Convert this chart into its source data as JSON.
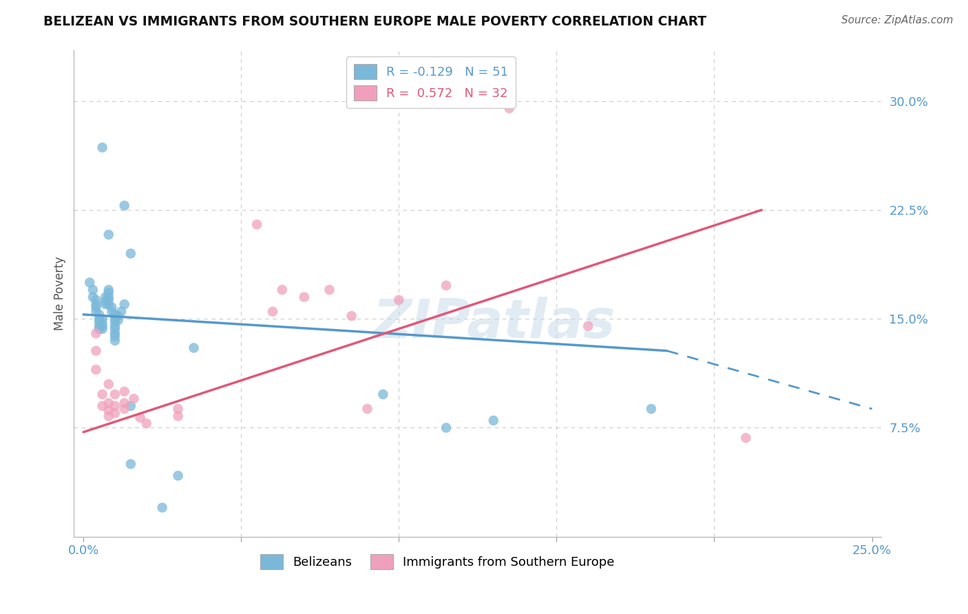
{
  "title": "BELIZEAN VS IMMIGRANTS FROM SOUTHERN EUROPE MALE POVERTY CORRELATION CHART",
  "source": "Source: ZipAtlas.com",
  "ylabel": "Male Poverty",
  "xlim": [
    -0.003,
    0.253
  ],
  "ylim": [
    0.0,
    0.335
  ],
  "xticks": [
    0.0,
    0.05,
    0.1,
    0.15,
    0.2,
    0.25
  ],
  "xticklabels": [
    "0.0%",
    "",
    "",
    "",
    "",
    "25.0%"
  ],
  "yticks": [
    0.075,
    0.15,
    0.225,
    0.3
  ],
  "yticklabels": [
    "7.5%",
    "15.0%",
    "22.5%",
    "30.0%"
  ],
  "watermark": "ZIPatlas",
  "legend_blue": "R = -0.129   N = 51",
  "legend_pink": "R =  0.572   N = 32",
  "legend2_blue": "Belizeans",
  "legend2_pink": "Immigrants from Southern Europe",
  "blue_color": "#7ab8d9",
  "pink_color": "#f0a0bc",
  "blue_line_color": "#5599cc",
  "pink_line_color": "#e05878",
  "blue_scatter": [
    [
      0.006,
      0.268
    ],
    [
      0.013,
      0.228
    ],
    [
      0.008,
      0.208
    ],
    [
      0.015,
      0.195
    ],
    [
      0.002,
      0.175
    ],
    [
      0.003,
      0.17
    ],
    [
      0.003,
      0.165
    ],
    [
      0.004,
      0.163
    ],
    [
      0.004,
      0.16
    ],
    [
      0.004,
      0.158
    ],
    [
      0.004,
      0.155
    ],
    [
      0.005,
      0.153
    ],
    [
      0.005,
      0.15
    ],
    [
      0.005,
      0.148
    ],
    [
      0.005,
      0.145
    ],
    [
      0.005,
      0.143
    ],
    [
      0.006,
      0.15
    ],
    [
      0.006,
      0.147
    ],
    [
      0.006,
      0.145
    ],
    [
      0.006,
      0.143
    ],
    [
      0.007,
      0.165
    ],
    [
      0.007,
      0.162
    ],
    [
      0.007,
      0.16
    ],
    [
      0.008,
      0.17
    ],
    [
      0.008,
      0.168
    ],
    [
      0.008,
      0.165
    ],
    [
      0.008,
      0.163
    ],
    [
      0.008,
      0.16
    ],
    [
      0.009,
      0.158
    ],
    [
      0.009,
      0.155
    ],
    [
      0.01,
      0.153
    ],
    [
      0.01,
      0.15
    ],
    [
      0.01,
      0.148
    ],
    [
      0.01,
      0.145
    ],
    [
      0.01,
      0.143
    ],
    [
      0.01,
      0.14
    ],
    [
      0.01,
      0.138
    ],
    [
      0.01,
      0.135
    ],
    [
      0.011,
      0.152
    ],
    [
      0.011,
      0.149
    ],
    [
      0.012,
      0.155
    ],
    [
      0.013,
      0.16
    ],
    [
      0.015,
      0.09
    ],
    [
      0.035,
      0.13
    ],
    [
      0.095,
      0.098
    ],
    [
      0.115,
      0.075
    ],
    [
      0.13,
      0.08
    ],
    [
      0.18,
      0.088
    ],
    [
      0.015,
      0.05
    ],
    [
      0.03,
      0.042
    ],
    [
      0.025,
      0.02
    ]
  ],
  "pink_scatter": [
    [
      0.004,
      0.14
    ],
    [
      0.004,
      0.128
    ],
    [
      0.004,
      0.115
    ],
    [
      0.006,
      0.098
    ],
    [
      0.006,
      0.09
    ],
    [
      0.008,
      0.105
    ],
    [
      0.008,
      0.092
    ],
    [
      0.008,
      0.087
    ],
    [
      0.008,
      0.083
    ],
    [
      0.01,
      0.098
    ],
    [
      0.01,
      0.09
    ],
    [
      0.01,
      0.085
    ],
    [
      0.013,
      0.1
    ],
    [
      0.013,
      0.092
    ],
    [
      0.013,
      0.088
    ],
    [
      0.016,
      0.095
    ],
    [
      0.018,
      0.082
    ],
    [
      0.02,
      0.078
    ],
    [
      0.03,
      0.088
    ],
    [
      0.03,
      0.083
    ],
    [
      0.055,
      0.215
    ],
    [
      0.06,
      0.155
    ],
    [
      0.063,
      0.17
    ],
    [
      0.07,
      0.165
    ],
    [
      0.078,
      0.17
    ],
    [
      0.085,
      0.152
    ],
    [
      0.09,
      0.088
    ],
    [
      0.1,
      0.163
    ],
    [
      0.115,
      0.173
    ],
    [
      0.135,
      0.295
    ],
    [
      0.16,
      0.145
    ],
    [
      0.21,
      0.068
    ]
  ],
  "blue_line": {
    "x0": 0.0,
    "y0": 0.153,
    "x1": 0.185,
    "y1": 0.128,
    "x1_dash": 0.25,
    "y1_dash": 0.088
  },
  "pink_line": {
    "x0": 0.0,
    "y0": 0.072,
    "x1": 0.215,
    "y1": 0.225
  }
}
